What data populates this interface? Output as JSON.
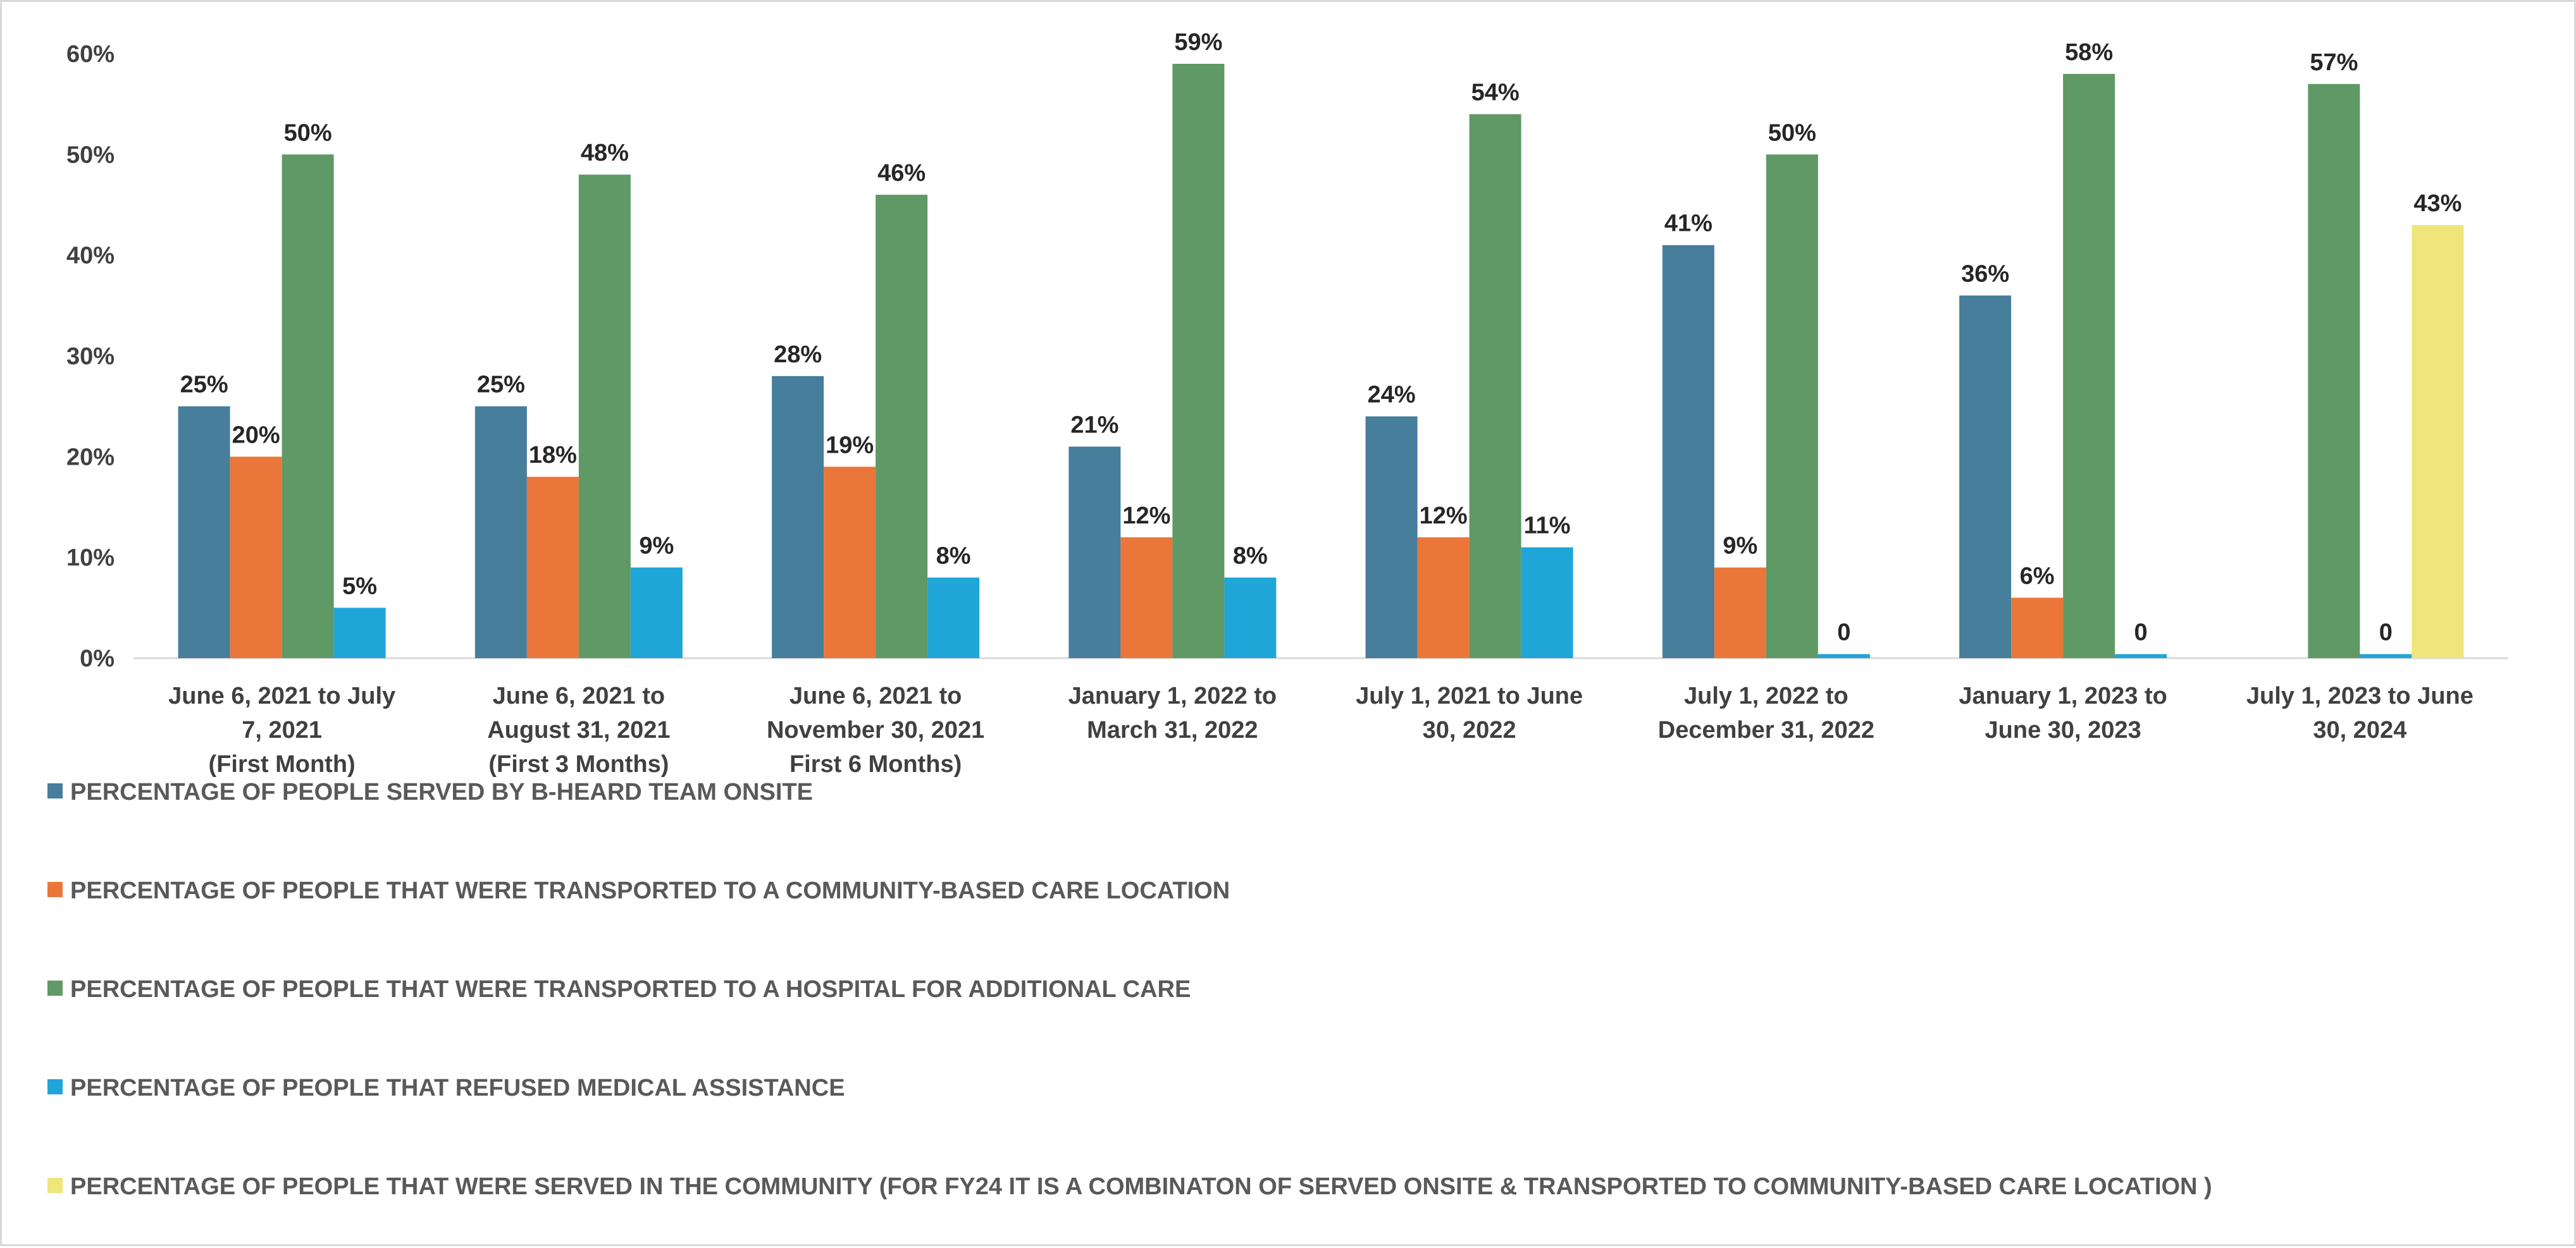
{
  "chart_data": {
    "type": "bar",
    "title": "",
    "xlabel": "",
    "ylabel": "",
    "ylim": [
      0,
      60
    ],
    "y_ticks": [
      "0%",
      "10%",
      "20%",
      "30%",
      "40%",
      "50%",
      "60%"
    ],
    "y_tick_values": [
      0,
      10,
      20,
      30,
      40,
      50,
      60
    ],
    "grid": false,
    "legend_position": "bottom-left",
    "categories": [
      [
        "June 6, 2021 to July",
        "7, 2021",
        "(First Month)"
      ],
      [
        "June 6, 2021 to",
        "August 31, 2021",
        "(First 3 Months)"
      ],
      [
        "June 6, 2021 to",
        "November 30, 2021",
        "First 6 Months)"
      ],
      [
        "January 1, 2022 to",
        "March 31, 2022"
      ],
      [
        "July 1, 2021 to June",
        "30, 2022"
      ],
      [
        "July 1, 2022 to",
        "December 31, 2022"
      ],
      [
        "January 1, 2023 to",
        "June 30, 2023"
      ],
      [
        "July 1, 2023 to June",
        "30, 2024"
      ]
    ],
    "series": [
      {
        "name": "PERCENTAGE OF PEOPLE SERVED BY B-HEARD TEAM ONSITE",
        "color": "#467E9C",
        "values": [
          25,
          25,
          28,
          21,
          24,
          41,
          36,
          null
        ],
        "labels": [
          "25%",
          "25%",
          "28%",
          "21%",
          "24%",
          "41%",
          "36%",
          null
        ]
      },
      {
        "name": "PERCENTAGE OF PEOPLE THAT WERE TRANSPORTED TO A COMMUNITY-BASED CARE LOCATION",
        "color": "#EA763A",
        "values": [
          20,
          18,
          19,
          12,
          12,
          9,
          6,
          null
        ],
        "labels": [
          "20%",
          "18%",
          "19%",
          "12%",
          "12%",
          "9%",
          "6%",
          null
        ]
      },
      {
        "name": "PERCENTAGE OF PEOPLE THAT WERE TRANSPORTED TO A HOSPITAL FOR ADDITIONAL CARE",
        "color": "#5F9966",
        "values": [
          50,
          48,
          46,
          59,
          54,
          50,
          58,
          57
        ],
        "labels": [
          "50%",
          "48%",
          "46%",
          "59%",
          "54%",
          "50%",
          "58%",
          "57%"
        ]
      },
      {
        "name": "PERCENTAGE OF PEOPLE THAT REFUSED MEDICAL ASSISTANCE",
        "color": "#1FA5D8",
        "values": [
          5,
          9,
          8,
          8,
          11,
          0.4,
          0.4,
          0.4
        ],
        "labels": [
          "5%",
          "9%",
          "8%",
          "8%",
          "11%",
          "0",
          "0",
          "0"
        ]
      },
      {
        "name": "PERCENTAGE OF PEOPLE THAT WERE SERVED IN THE COMMUNITY (FOR FY24 IT IS A COMBINATON OF SERVED ONSITE & TRANSPORTED TO COMMUNITY-BASED CARE LOCATION )",
        "color": "#EFE57A",
        "values": [
          null,
          null,
          null,
          null,
          null,
          null,
          null,
          43
        ],
        "labels": [
          null,
          null,
          null,
          null,
          null,
          null,
          null,
          "43%"
        ]
      }
    ]
  }
}
